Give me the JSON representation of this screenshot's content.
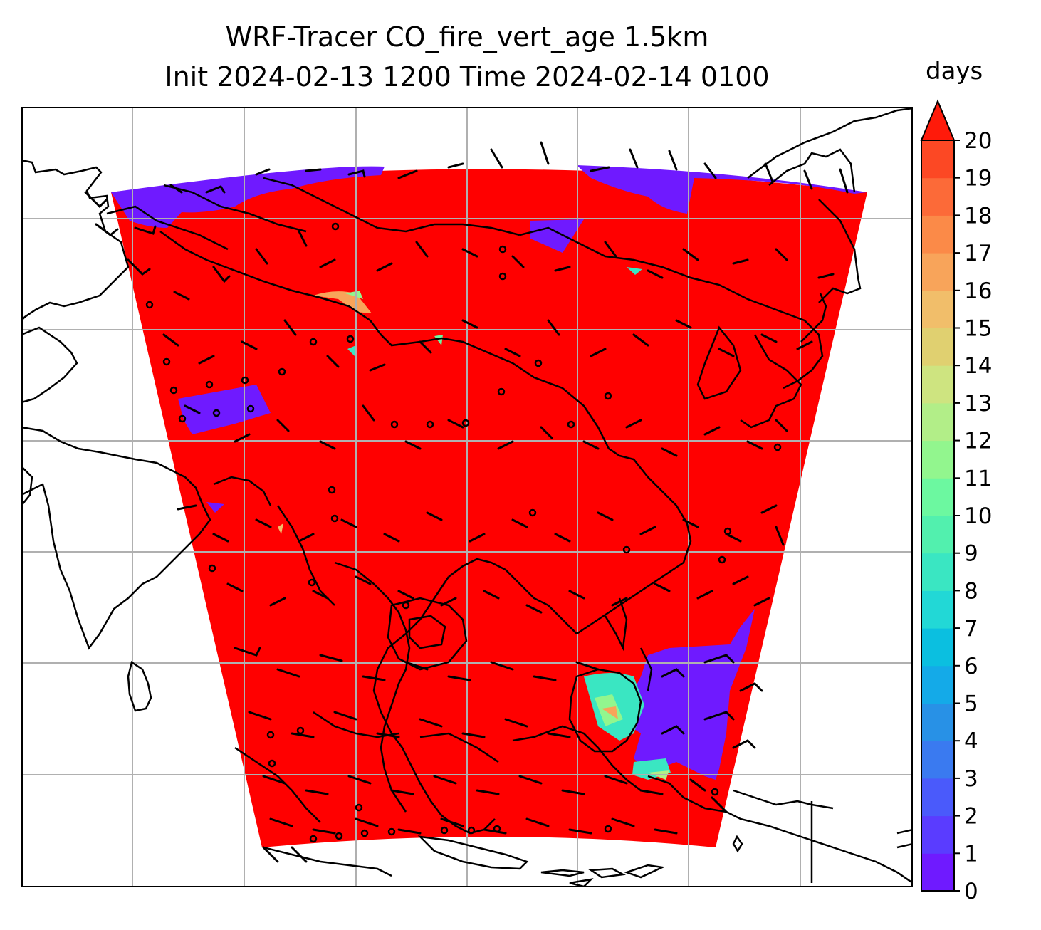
{
  "title": {
    "line1": "WRF-Tracer CO_fire_vert_age 1.5km",
    "line2": "Init 2024-02-13 1200 Time 2024-02-14 0100"
  },
  "colorbar": {
    "label": "days",
    "ticks": [
      "0",
      "1",
      "2",
      "3",
      "4",
      "5",
      "6",
      "7",
      "8",
      "9",
      "10",
      "11",
      "12",
      "13",
      "14",
      "15",
      "16",
      "17",
      "18",
      "19",
      "20"
    ],
    "extend": "max",
    "colors": [
      "#6f1aff",
      "#5a3cff",
      "#4a5afb",
      "#3a7af0",
      "#2891e6",
      "#14aae8",
      "#0bbfe0",
      "#22d8d6",
      "#3ae6c2",
      "#52f0ae",
      "#6cf8a0",
      "#92f68e",
      "#b2ee88",
      "#cee480",
      "#e0d070",
      "#f1be6a",
      "#f8a45a",
      "#fb8a48",
      "#fc6a38",
      "#fc4824",
      "#fe2212"
    ],
    "over_color": "#ff1a0a"
  },
  "map": {
    "field_color": "#ff0000",
    "low_value_color": "#6f1aff",
    "gridline_color": "#b0b0b0",
    "coastline_color": "#000000"
  }
}
